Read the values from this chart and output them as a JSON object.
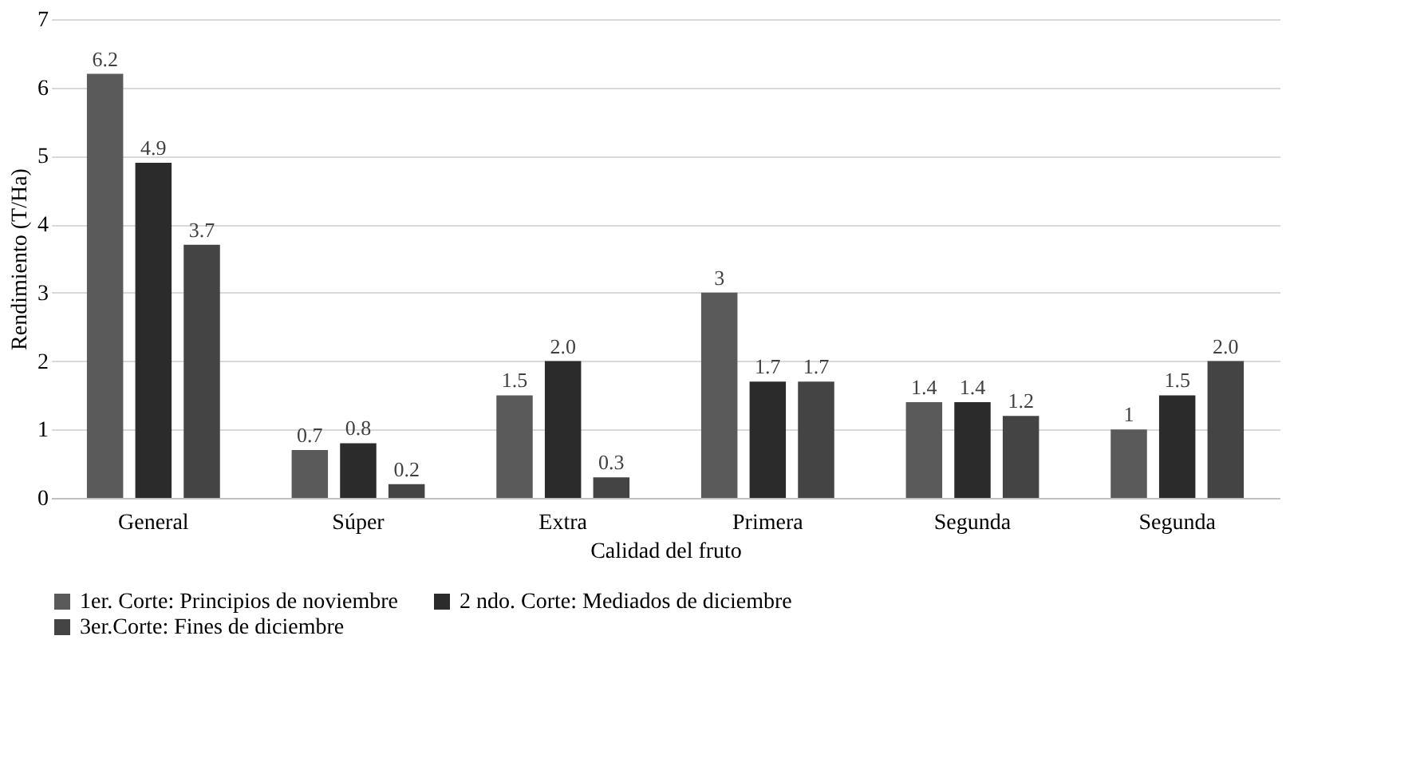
{
  "chart_data": {
    "type": "bar",
    "xlabel": "Calidad del fruto",
    "ylabel": "Rendimiento (T/Ha)",
    "categories": [
      "General",
      "Súper",
      "Extra",
      "Primera",
      "Segunda",
      "Segunda"
    ],
    "series": [
      {
        "name": "1er. Corte: Principios de noviembre",
        "color": "#5a5a5a",
        "values": [
          6.2,
          0.7,
          1.5,
          3,
          1.4,
          1
        ],
        "value_labels": [
          "6.2",
          "0.7",
          "1.5",
          "3",
          "1.4",
          "1"
        ]
      },
      {
        "name": "2 ndo. Corte: Mediados de diciembre",
        "color": "#2b2b2b",
        "values": [
          4.9,
          0.8,
          2.0,
          1.7,
          1.4,
          1.5
        ],
        "value_labels": [
          "4.9",
          "0.8",
          "2.0",
          "1.7",
          "1.4",
          "1.5"
        ]
      },
      {
        "name": "3er.Corte: Fines de diciembre",
        "color": "#444444",
        "values": [
          3.7,
          0.2,
          0.3,
          1.7,
          1.2,
          2.0
        ],
        "value_labels": [
          "3.7",
          "0.2",
          "0.3",
          "1.7",
          "1.2",
          "2.0"
        ]
      }
    ],
    "ylim": [
      0,
      7
    ],
    "yticks": [
      0,
      1,
      2,
      3,
      4,
      5,
      6,
      7
    ],
    "grid": "y",
    "legend": "bottom"
  }
}
